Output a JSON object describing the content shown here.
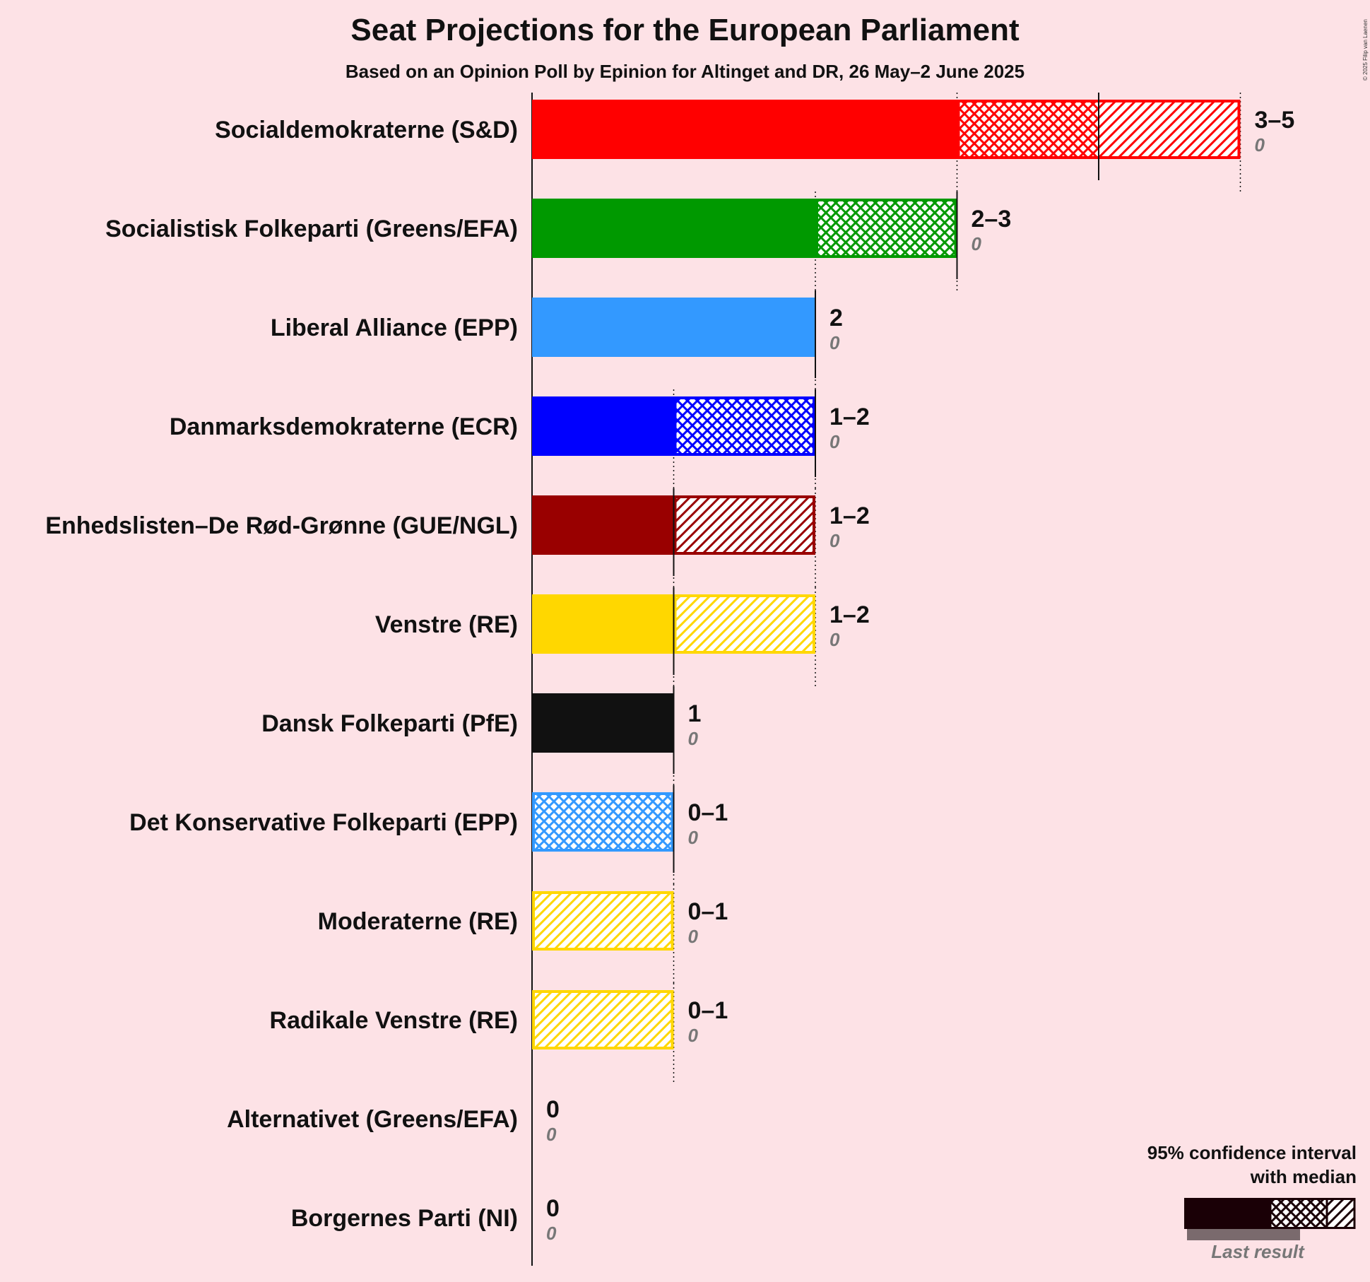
{
  "title": "Seat Projections for the European Parliament",
  "subtitle": "Based on an Opinion Poll by Epinion for Altinget and DR, 26 May–2 June 2025",
  "copyright": "© 2025 Filip van Laenen",
  "legend": {
    "title_line1": "95% confidence interval",
    "title_line2": "with median",
    "last_result": "Last result"
  },
  "chart_data": {
    "type": "bar",
    "orientation": "horizontal",
    "xlim": [
      0,
      5
    ],
    "grid": "dotted vertical lines at integer seats",
    "legend_position": "bottom-right",
    "parties": [
      {
        "name": "Socialdemokraterne (S&D)",
        "low": 3,
        "median": 4,
        "high": 5,
        "label": "3–5",
        "last": 0,
        "last_label": "0",
        "color": "#ff0000"
      },
      {
        "name": "Socialistisk Folkeparti (Greens/EFA)",
        "low": 2,
        "median": 3,
        "high": 3,
        "label": "2–3",
        "last": 0,
        "last_label": "0",
        "color": "#009900"
      },
      {
        "name": "Liberal Alliance (EPP)",
        "low": 2,
        "median": 2,
        "high": 2,
        "label": "2",
        "last": 0,
        "last_label": "0",
        "color": "#3399ff"
      },
      {
        "name": "Danmarksdemokraterne (ECR)",
        "low": 1,
        "median": 2,
        "high": 2,
        "label": "1–2",
        "last": 0,
        "last_label": "0",
        "color": "#0000ff"
      },
      {
        "name": "Enhedslisten–De Rød-Grønne (GUE/NGL)",
        "low": 1,
        "median": 1,
        "high": 2,
        "label": "1–2",
        "last": 0,
        "last_label": "0",
        "color": "#990000"
      },
      {
        "name": "Venstre (RE)",
        "low": 1,
        "median": 1,
        "high": 2,
        "label": "1–2",
        "last": 0,
        "last_label": "0",
        "color": "#ffd700"
      },
      {
        "name": "Dansk Folkeparti (PfE)",
        "low": 1,
        "median": 1,
        "high": 1,
        "label": "1",
        "last": 0,
        "last_label": "0",
        "color": "#111111"
      },
      {
        "name": "Det Konservative Folkeparti (EPP)",
        "low": 0,
        "median": 1,
        "high": 1,
        "label": "0–1",
        "last": 0,
        "last_label": "0",
        "color": "#3399ff"
      },
      {
        "name": "Moderaterne (RE)",
        "low": 0,
        "median": 0,
        "high": 1,
        "label": "0–1",
        "last": 0,
        "last_label": "0",
        "color": "#ffd700"
      },
      {
        "name": "Radikale Venstre (RE)",
        "low": 0,
        "median": 0,
        "high": 1,
        "label": "0–1",
        "last": 0,
        "last_label": "0",
        "color": "#ffd700"
      },
      {
        "name": "Alternativet (Greens/EFA)",
        "low": 0,
        "median": 0,
        "high": 0,
        "label": "0",
        "last": 0,
        "last_label": "0",
        "color": "#00aa44"
      },
      {
        "name": "Borgernes Parti (NI)",
        "low": 0,
        "median": 0,
        "high": 0,
        "label": "0",
        "last": 0,
        "last_label": "0",
        "color": "#888888"
      }
    ]
  }
}
